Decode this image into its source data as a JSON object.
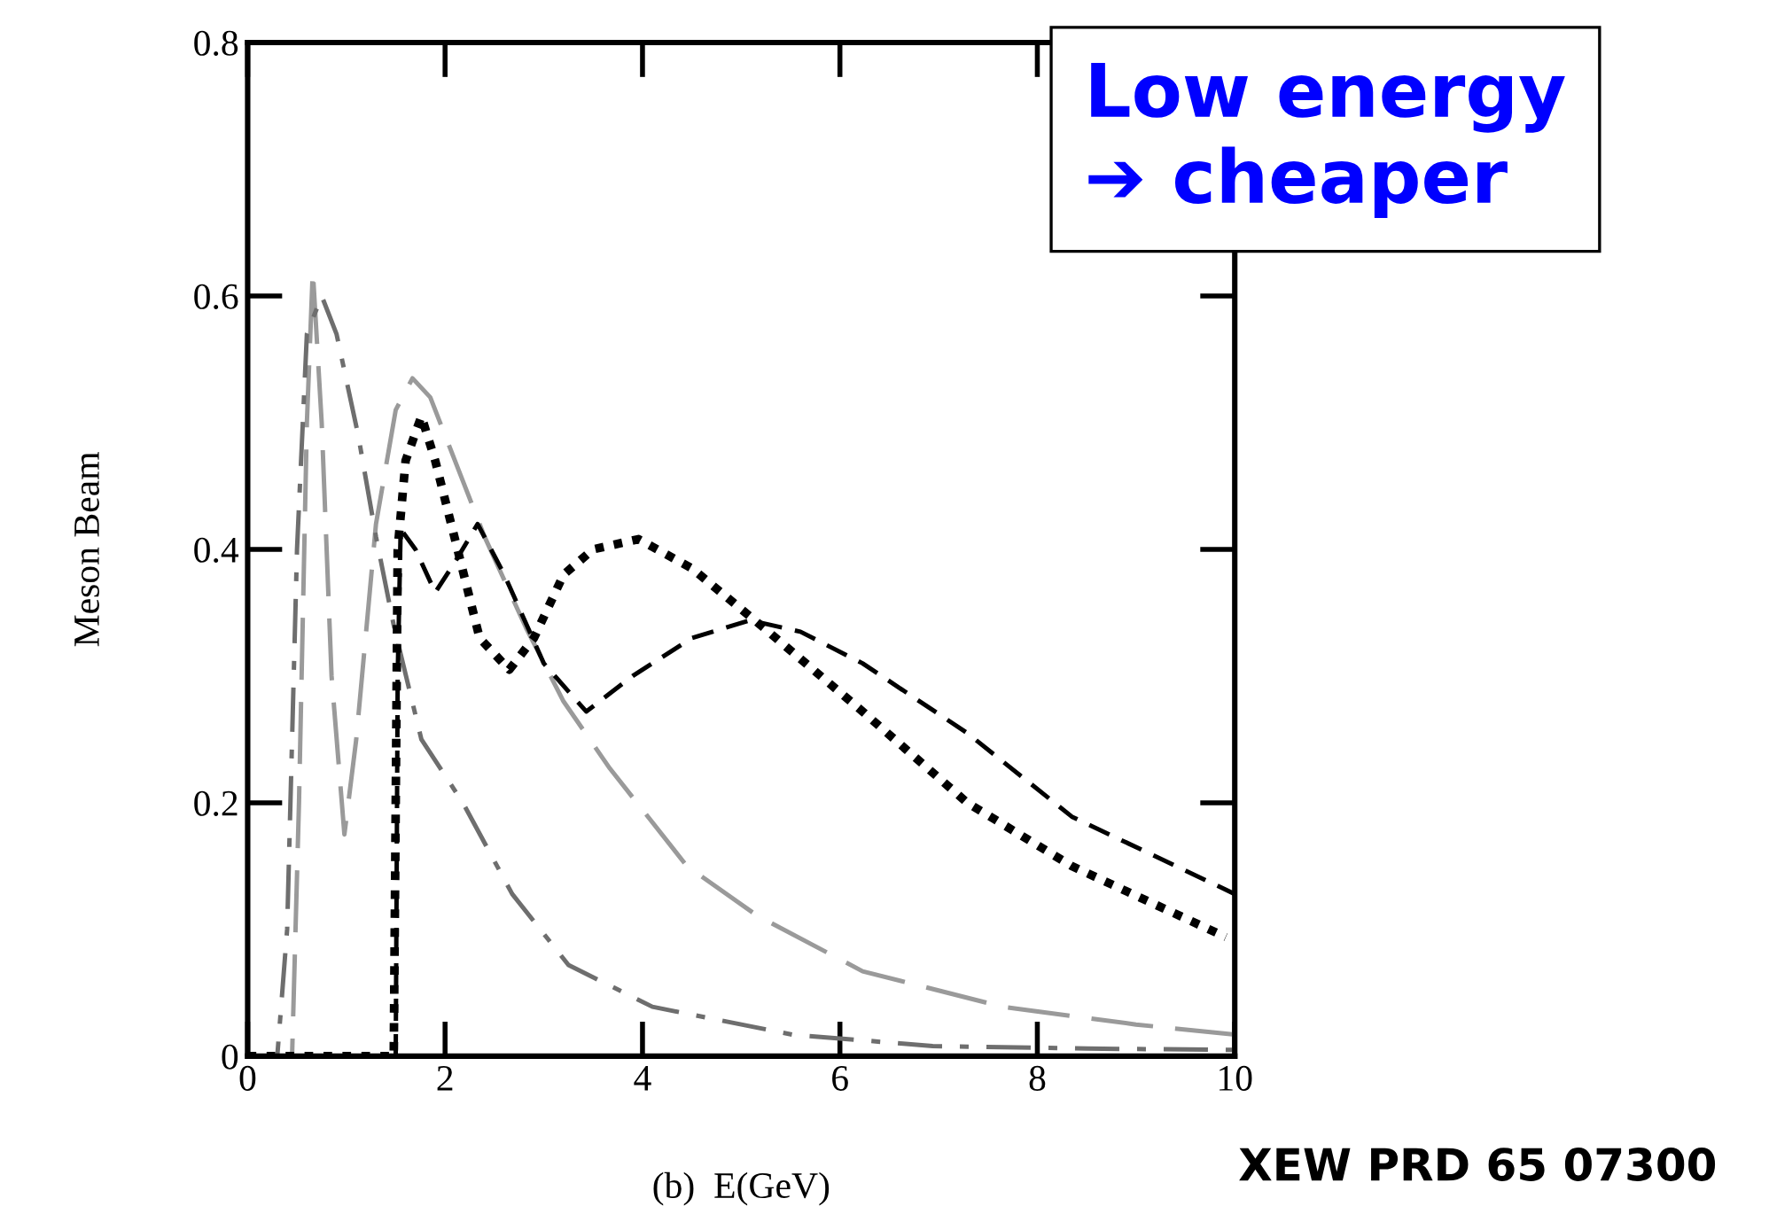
{
  "chart_data": {
    "type": "line",
    "xlabel": "(b)  E(GeV)",
    "ylabel": "Meson Beam",
    "xlim": [
      0,
      10
    ],
    "ylim": [
      0,
      0.8
    ],
    "xticks": [
      0,
      2,
      4,
      6,
      8,
      10
    ],
    "yticks": [
      0,
      0.2,
      0.4,
      0.6,
      0.8
    ],
    "grid": false,
    "legend": false,
    "annotations": [
      "Low energy\n➔ cheaper",
      "XEW PRD 65 07300"
    ],
    "series": [
      {
        "color": "#9a9a9a",
        "line_style": "dashed",
        "x": [
          0,
          0.45,
          0.52,
          0.6,
          0.66,
          0.75,
          0.85,
          0.98,
          1.1,
          1.3,
          1.5,
          1.67,
          1.85,
          2.1,
          2.4,
          2.82,
          3.2,
          3.67,
          4.45,
          5.16,
          6.23,
          7.65,
          9,
          10
        ],
        "values": [
          0,
          0,
          0.2,
          0.5,
          0.62,
          0.5,
          0.3,
          0.175,
          0.25,
          0.42,
          0.51,
          0.535,
          0.52,
          0.47,
          0.41,
          0.338,
          0.28,
          0.227,
          0.15,
          0.111,
          0.067,
          0.039,
          0.025,
          0.017
        ]
      },
      {
        "color": "#6e6e6e",
        "line_style": "dashed",
        "x": [
          0,
          0.3,
          0.4,
          0.5,
          0.6,
          0.75,
          0.9,
          1.12,
          1.3,
          1.48,
          1.76,
          2.18,
          2.68,
          3.25,
          4.1,
          5.52,
          6.94,
          8.5,
          10
        ],
        "values": [
          0,
          0,
          0.1,
          0.4,
          0.57,
          0.6,
          0.57,
          0.49,
          0.41,
          0.34,
          0.25,
          0.2,
          0.128,
          0.072,
          0.039,
          0.017,
          0.008,
          0.006,
          0.005
        ]
      },
      {
        "color": "#000000",
        "line_style": "dotted",
        "x": [
          0,
          1.48,
          1.5,
          1.52,
          1.6,
          1.76,
          1.9,
          2.11,
          2.35,
          2.65,
          2.9,
          3.2,
          3.5,
          3.96,
          4.5,
          5.23,
          6.23,
          7.29,
          8.35,
          9.91
        ],
        "values": [
          0,
          0,
          0.2,
          0.4,
          0.47,
          0.505,
          0.47,
          0.405,
          0.33,
          0.305,
          0.33,
          0.38,
          0.4,
          0.408,
          0.385,
          0.338,
          0.272,
          0.2,
          0.15,
          0.094
        ]
      },
      {
        "color": "#000000",
        "line_style": "dashed",
        "x": [
          1.5,
          1.52,
          1.55,
          1.7,
          1.9,
          2.1,
          2.33,
          2.6,
          3,
          3.43,
          3.9,
          4.5,
          5.09,
          5.6,
          6.23,
          7.29,
          8.35,
          10
        ],
        "values": [
          0,
          0.3,
          0.416,
          0.4,
          0.366,
          0.39,
          0.42,
          0.38,
          0.31,
          0.272,
          0.3,
          0.33,
          0.344,
          0.335,
          0.31,
          0.255,
          0.189,
          0.128
        ]
      }
    ]
  }
}
